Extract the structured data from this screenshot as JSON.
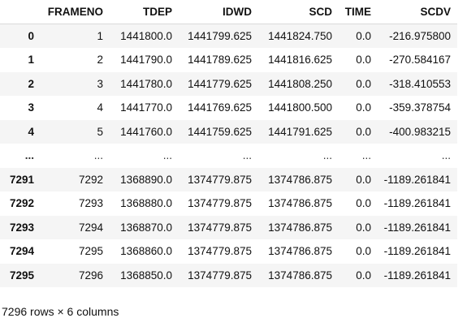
{
  "table": {
    "columns": [
      "FRAMENO",
      "TDEP",
      "IDWD",
      "SCD",
      "TIME",
      "SCDV"
    ],
    "rows": [
      {
        "index": "0",
        "cells": [
          "1",
          "1441800.0",
          "1441799.625",
          "1441824.750",
          "0.0",
          "-216.975800"
        ]
      },
      {
        "index": "1",
        "cells": [
          "2",
          "1441790.0",
          "1441789.625",
          "1441816.625",
          "0.0",
          "-270.584167"
        ]
      },
      {
        "index": "2",
        "cells": [
          "3",
          "1441780.0",
          "1441779.625",
          "1441808.250",
          "0.0",
          "-318.410553"
        ]
      },
      {
        "index": "3",
        "cells": [
          "4",
          "1441770.0",
          "1441769.625",
          "1441800.500",
          "0.0",
          "-359.378754"
        ]
      },
      {
        "index": "4",
        "cells": [
          "5",
          "1441760.0",
          "1441759.625",
          "1441791.625",
          "0.0",
          "-400.983215"
        ]
      },
      {
        "index": "...",
        "cells": [
          "...",
          "...",
          "...",
          "...",
          "...",
          "..."
        ]
      },
      {
        "index": "7291",
        "cells": [
          "7292",
          "1368890.0",
          "1374779.875",
          "1374786.875",
          "0.0",
          "-1189.261841"
        ]
      },
      {
        "index": "7292",
        "cells": [
          "7293",
          "1368880.0",
          "1374779.875",
          "1374786.875",
          "0.0",
          "-1189.261841"
        ]
      },
      {
        "index": "7293",
        "cells": [
          "7294",
          "1368870.0",
          "1374779.875",
          "1374786.875",
          "0.0",
          "-1189.261841"
        ]
      },
      {
        "index": "7294",
        "cells": [
          "7295",
          "1368860.0",
          "1374779.875",
          "1374786.875",
          "0.0",
          "-1189.261841"
        ]
      },
      {
        "index": "7295",
        "cells": [
          "7296",
          "1368850.0",
          "1374779.875",
          "1374786.875",
          "0.0",
          "-1189.261841"
        ]
      }
    ]
  },
  "shape_caption": "7296 rows × 6 columns"
}
